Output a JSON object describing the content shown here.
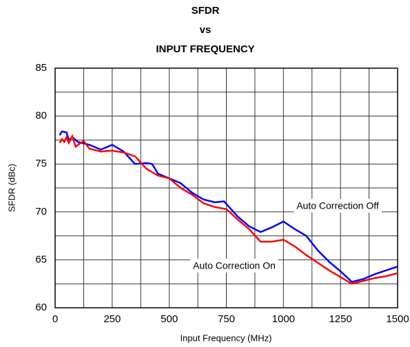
{
  "chart_data": {
    "type": "line",
    "title": [
      "SFDR",
      "vs",
      "INPUT FREQUENCY"
    ],
    "xlabel": "Input Frequency (MHz)",
    "ylabel": "SFDR (dBc)",
    "xlim": [
      0,
      1500
    ],
    "ylim": [
      60,
      85
    ],
    "xticks": [
      0,
      250,
      500,
      750,
      1000,
      1250,
      1500
    ],
    "yticks": [
      60,
      65,
      70,
      75,
      80,
      85
    ],
    "xminor": [
      125,
      375,
      625,
      875,
      1125,
      1375
    ],
    "yminor": [
      62.5,
      67.5,
      72.5,
      77.5,
      82.5
    ],
    "grid": true,
    "series": [
      {
        "name": "Auto Correction Off",
        "color": "#0000ff",
        "x": [
          20,
          30,
          50,
          60,
          75,
          100,
          150,
          200,
          250,
          300,
          350,
          400,
          425,
          450,
          500,
          550,
          600,
          650,
          700,
          740,
          800,
          850,
          900,
          950,
          1000,
          1050,
          1100,
          1150,
          1200,
          1250,
          1300,
          1350,
          1400,
          1450,
          1500
        ],
        "values": [
          78,
          78.4,
          78.3,
          77.5,
          77.8,
          77.3,
          77,
          76.5,
          77,
          76.3,
          75,
          75.1,
          75,
          74,
          73.5,
          73,
          72,
          71.3,
          71,
          71.1,
          69.5,
          68.5,
          67.9,
          68.4,
          69,
          68.2,
          67.5,
          66,
          64.8,
          63.8,
          62.7,
          63,
          63.5,
          63.9,
          64.3
        ]
      },
      {
        "name": "Auto Correction On",
        "color": "#ff0000",
        "x": [
          20,
          30,
          40,
          50,
          60,
          75,
          90,
          100,
          125,
          150,
          200,
          250,
          300,
          350,
          400,
          450,
          500,
          550,
          600,
          650,
          700,
          750,
          800,
          850,
          900,
          950,
          1000,
          1050,
          1100,
          1150,
          1200,
          1250,
          1300,
          1350,
          1400,
          1450,
          1500
        ],
        "values": [
          77.2,
          77.6,
          77.3,
          77.8,
          77.2,
          77.9,
          76.8,
          77,
          77.4,
          76.6,
          76.3,
          76.4,
          76.2,
          75.8,
          74.5,
          73.8,
          73.5,
          72.5,
          71.8,
          70.9,
          70.5,
          70.3,
          69.2,
          68.2,
          66.9,
          66.9,
          67.1,
          66.4,
          65.5,
          64.7,
          63.9,
          63.2,
          62.5,
          62.8,
          63.1,
          63.3,
          63.6
        ]
      }
    ]
  }
}
